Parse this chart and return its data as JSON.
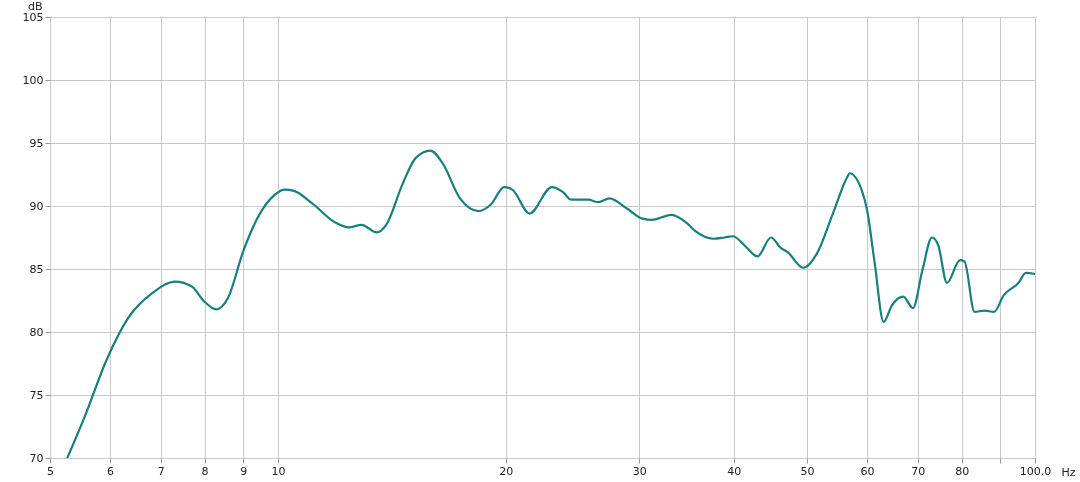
{
  "chart_data": {
    "type": "line",
    "xlabel": "Hz",
    "ylabel": "dB",
    "log": "x",
    "grid": true,
    "marker": "none",
    "line_style": "solid",
    "xlim": [
      5,
      100
    ],
    "ylim": [
      70,
      105
    ],
    "xticks": [
      5,
      6,
      7,
      8,
      9,
      10,
      20,
      30,
      40,
      50,
      60,
      70,
      80,
      {
        "value": 90,
        "label": null
      },
      {
        "value": 100,
        "label": "100.0"
      }
    ],
    "yticks": [
      70,
      75,
      80,
      85,
      90,
      95,
      100,
      105
    ],
    "x": [
      5.27,
      5.55,
      5.94,
      6.34,
      6.83,
      7.32,
      7.7,
      8.0,
      8.29,
      8.59,
      9.01,
      9.39,
      9.91,
      10.2,
      10.5,
      11.1,
      11.9,
      12.4,
      12.9,
      13.5,
      13.9,
      14.6,
      15.2,
      15.9,
      16.5,
      17.4,
      18.4,
      19.1,
      19.9,
      20.4,
      21.5,
      23.0,
      23.8,
      24.4,
      25.7,
      26.5,
      27.4,
      28.9,
      30.3,
      31.2,
      33.1,
      34.6,
      35.6,
      37.6,
      38.9,
      39.9,
      41.3,
      43.0,
      44.8,
      46.1,
      47.2,
      49.4,
      51.6,
      54.0,
      56.5,
      56.9,
      59.0,
      60.0,
      61.4,
      63.1,
      64.7,
      67.0,
      69.0,
      71.0,
      73.1,
      74.5,
      76.5,
      79.6,
      80.7,
      83.2,
      85.7,
      88.3,
      90.9,
      95.1,
      97.3,
      100
    ],
    "series": [
      {
        "color": "#17807e",
        "values": [
          70.0,
          73.2,
          77.8,
          81.1,
          83.1,
          84.0,
          83.6,
          82.4,
          81.8,
          82.7,
          86.5,
          89.0,
          90.9,
          91.3,
          91.2,
          90.2,
          88.7,
          88.3,
          88.5,
          87.9,
          88.5,
          91.7,
          93.8,
          94.4,
          93.4,
          90.6,
          89.6,
          90.1,
          91.5,
          91.3,
          89.4,
          91.5,
          91.1,
          90.5,
          90.5,
          90.3,
          90.6,
          89.8,
          89.0,
          88.9,
          89.3,
          88.7,
          88.0,
          87.4,
          87.5,
          87.6,
          86.9,
          86.0,
          87.5,
          86.7,
          86.3,
          85.1,
          86.3,
          89.3,
          92.3,
          92.6,
          91.3,
          89.7,
          85.5,
          80.8,
          82.1,
          82.8,
          81.9,
          84.9,
          87.5,
          86.9,
          83.9,
          85.7,
          85.6,
          81.6,
          81.7,
          81.6,
          82.9,
          83.9,
          84.7,
          84.6
        ]
      }
    ]
  }
}
